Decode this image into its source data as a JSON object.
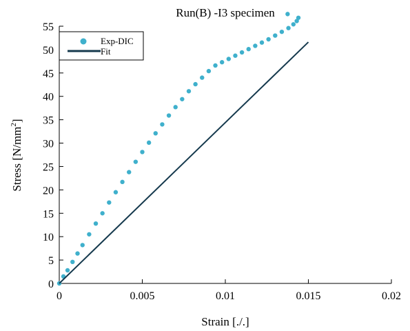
{
  "chart_data": {
    "type": "scatter",
    "title": "Run(B) -I3 specimen",
    "xlabel": "Strain [./.]",
    "ylabel_main": "Stress [N/mm",
    "ylabel_sup": "2",
    "ylabel_end": "]",
    "xlim": [
      0,
      0.02
    ],
    "ylim": [
      0,
      55
    ],
    "x_ticks": [
      0,
      0.005,
      0.01,
      0.015,
      0.02
    ],
    "x_tick_labels": [
      "0",
      "0.005",
      "0.01",
      "0.015",
      "0.02"
    ],
    "y_ticks": [
      0,
      5,
      10,
      15,
      20,
      25,
      30,
      35,
      40,
      45,
      50,
      55
    ],
    "y_tick_labels": [
      "0",
      "5",
      "10",
      "15",
      "20",
      "25",
      "30",
      "35",
      "40",
      "45",
      "50",
      "55"
    ],
    "grid": false,
    "legend_position": "top-left",
    "colors": {
      "exp": "#3fb0cc",
      "fit": "#15394d"
    },
    "series": [
      {
        "name": "Exp-DIC",
        "kind": "points",
        "x": [
          0.0,
          0.00025,
          0.0005,
          0.0008,
          0.0011,
          0.0014,
          0.0018,
          0.0022,
          0.0026,
          0.003,
          0.0034,
          0.0038,
          0.0042,
          0.0046,
          0.005,
          0.0054,
          0.0058,
          0.0062,
          0.0066,
          0.007,
          0.0074,
          0.0078,
          0.0082,
          0.0086,
          0.009,
          0.0094,
          0.0098,
          0.0102,
          0.0106,
          0.011,
          0.0114,
          0.0118,
          0.0122,
          0.0126,
          0.013,
          0.0134,
          0.0138,
          0.0141,
          0.0143,
          0.0144,
          0.01375
        ],
        "y": [
          0.0,
          1.5,
          2.8,
          4.6,
          6.4,
          8.2,
          10.5,
          12.8,
          15.0,
          17.3,
          19.5,
          21.7,
          23.8,
          26.0,
          28.1,
          30.1,
          32.1,
          34.0,
          35.9,
          37.7,
          39.4,
          41.1,
          42.6,
          44.0,
          45.4,
          46.6,
          47.3,
          48.0,
          48.7,
          49.4,
          50.1,
          50.8,
          51.5,
          52.2,
          53.0,
          53.8,
          54.6,
          55.4,
          56.1,
          56.8,
          57.6
        ]
      },
      {
        "name": "Fit",
        "kind": "line",
        "x": [
          0,
          0.015
        ],
        "y": [
          0,
          51.6
        ]
      }
    ]
  }
}
